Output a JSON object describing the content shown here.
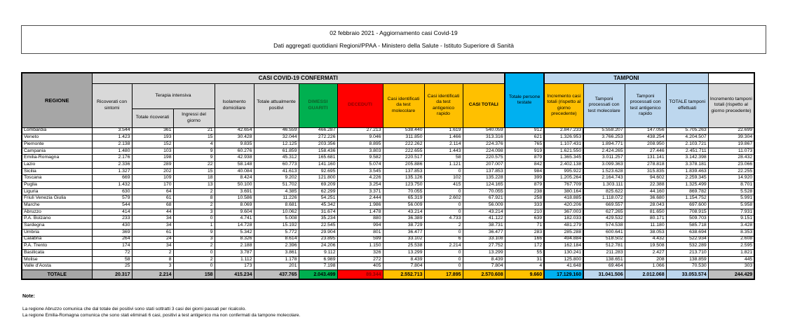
{
  "title": {
    "line1": "02 febbraio 2021 - Aggiornamento casi Covid-19",
    "line2": "Dati aggregati quotidiani Regioni/PPAA - Ministero della Salute - Istituto Superiore di Sanità"
  },
  "colors": {
    "green": "#00b050",
    "red": "#ff0000",
    "gold": "#ffc000",
    "cyan": "#00b0f0",
    "light_blue": "#bdd7ee",
    "header_gray": "#d9d9d9",
    "regione_gray": "#a6a6a6",
    "total_gray": "#bfbfbf"
  },
  "table": {
    "headers": {
      "regione": "REGIONE",
      "casi_confermati": "CASI COVID-19 CONFERMATI",
      "tamponi_banner": "TAMPONI",
      "persone_testate": "Totale persone testate",
      "ricoverati_sintomi": "Ricoverati con sintomi",
      "terapia_intensiva": "Terapia intensiva",
      "totale_ricoverati": "Totale ricoverati",
      "ingressi_giorno": "Ingressi del giorno",
      "isolamento": "Isolamento domiciliare",
      "attualmente_positivi": "Totale attualmente positivi",
      "dimessi_guariti": "DIMESSI GUARITI",
      "deceduti": "DECEDUTI",
      "casi_molecolare": "Casi identificati da test molecolare",
      "casi_antigenico": "Casi identificati da test antigenico rapido",
      "casi_totali": "CASI TOTALI",
      "incremento_casi": "Incremento casi totali (rispetto al giorno precedente)",
      "tamponi_molecolare": "Tamponi processati con test molecolare",
      "tamponi_antigenico": "Tamponi processati con test antigenico rapido",
      "totale_tamponi": "TOTALE tamponi effettuati",
      "incremento_tamponi": "Incremento tamponi totali (rispetto al giorno precedente)"
    },
    "rows": [
      {
        "name": "Lombardia",
        "values": [
          "3.544",
          "361",
          "21",
          "42.654",
          "46.559",
          "466.287",
          "27.213",
          "538.440",
          "1.619",
          "540.059",
          "912",
          "2.847.233",
          "5.558.207",
          "147.056",
          "5.705.263",
          "22.699"
        ]
      },
      {
        "name": "Veneto",
        "values": [
          "1.423",
          "193",
          "15",
          "30.428",
          "32.044",
          "272.226",
          "9.046",
          "311.850",
          "1.466",
          "313.316",
          "621",
          "1.326.953",
          "3.766.253",
          "438.254",
          "4.204.507",
          "39.304"
        ]
      },
      {
        "name": "Piemonte",
        "values": [
          "2.138",
          "152",
          "4",
          "9.835",
          "12.125",
          "203.356",
          "8.895",
          "222.262",
          "2.114",
          "224.376",
          "765",
          "1.107.431",
          "1.894.771",
          "208.950",
          "2.103.721",
          "19.867"
        ]
      },
      {
        "name": "Campania",
        "values": [
          "1.480",
          "103",
          "9",
          "60.276",
          "61.859",
          "158.436",
          "3.803",
          "222.655",
          "1.443",
          "224.098",
          "919",
          "1.621.550",
          "2.424.265",
          "27.446",
          "2.451.711",
          "11.073"
        ]
      },
      {
        "name": "Emilia-Romagna",
        "values": [
          "2.176",
          "198",
          "9",
          "42.938",
          "45.312",
          "165.681",
          "9.582",
          "220.517",
          "58",
          "220.575",
          "879",
          "1.365.345",
          "3.011.257",
          "131.141",
          "3.142.398",
          "28.432"
        ]
      },
      {
        "name": "Lazio",
        "values": [
          "2.336",
          "289",
          "22",
          "58.148",
          "60.773",
          "141.160",
          "5.074",
          "205.886",
          "1.121",
          "207.007",
          "842",
          "2.402.138",
          "3.099.363",
          "278.818",
          "3.378.181",
          "23.066"
        ]
      },
      {
        "name": "Sicilia",
        "values": [
          "1.327",
          "202",
          "15",
          "40.084",
          "41.613",
          "92.695",
          "3.545",
          "137.853",
          "0",
          "137.853",
          "984",
          "995.922",
          "1.523.628",
          "315.835",
          "1.839.463",
          "22.255"
        ]
      },
      {
        "name": "Toscana",
        "values": [
          "669",
          "109",
          "18",
          "8.424",
          "9.202",
          "121.800",
          "4.226",
          "135.126",
          "102",
          "135.228",
          "399",
          "1.205.264",
          "2.164.743",
          "94.602",
          "2.259.345",
          "14.920"
        ]
      },
      {
        "name": "Puglia",
        "values": [
          "1.432",
          "170",
          "13",
          "50.100",
          "51.702",
          "69.209",
          "3.254",
          "123.750",
          "415",
          "124.165",
          "879",
          "767.709",
          "1.303.111",
          "22.388",
          "1.325.499",
          "8.701"
        ]
      },
      {
        "name": "Liguria",
        "values": [
          "630",
          "64",
          "2",
          "3.691",
          "4.385",
          "62.299",
          "3.371",
          "70.055",
          "0",
          "70.055",
          "238",
          "380.164",
          "825.622",
          "44.160",
          "869.782",
          "5.528"
        ]
      },
      {
        "name": "Friuli Venezia Giulia",
        "values": [
          "579",
          "61",
          "8",
          "10.586",
          "11.226",
          "54.251",
          "2.444",
          "65.319",
          "2.602",
          "67.921",
          "258",
          "418.885",
          "1.118.072",
          "36.680",
          "1.154.752",
          "5.991"
        ]
      },
      {
        "name": "Marche",
        "values": [
          "544",
          "68",
          "2",
          "8.069",
          "8.681",
          "45.342",
          "1.986",
          "56.009",
          "0",
          "56.009",
          "333",
          "420.206",
          "669.557",
          "28.043",
          "697.600",
          "5.958"
        ]
      },
      {
        "name": "Abruzzo",
        "values": [
          "414",
          "44",
          "3",
          "9.604",
          "10.062",
          "31.674",
          "1.478",
          "43.214",
          "0",
          "43.214",
          "210",
          "367.003",
          "627.265",
          "81.650",
          "708.915",
          "7.931"
        ]
      },
      {
        "name": "P.A. Bolzano",
        "values": [
          "233",
          "34",
          "0",
          "4.741",
          "5.008",
          "35.234",
          "880",
          "36.389",
          "4.733",
          "41.122",
          "639",
          "182.033",
          "429.532",
          "80.171",
          "509.703",
          "9.151"
        ]
      },
      {
        "name": "Sardegna",
        "values": [
          "430",
          "34",
          "1",
          "14.728",
          "15.192",
          "22.545",
          "994",
          "38.729",
          "2",
          "38.731",
          "71",
          "481.279",
          "574.538",
          "11.180",
          "585.718",
          "3.428"
        ]
      },
      {
        "name": "Umbria",
        "values": [
          "369",
          "61",
          "9",
          "5.342",
          "5.772",
          "29.904",
          "801",
          "36.477",
          "0",
          "36.477",
          "283",
          "285.288",
          "600.641",
          "38.053",
          "638.694",
          "8.353"
        ]
      },
      {
        "name": "Calabria",
        "values": [
          "264",
          "24",
          "3",
          "8.326",
          "8.614",
          "23.895",
          "599",
          "33.102",
          "6",
          "33.108",
          "166",
          "494.884",
          "518.502",
          "4.432",
          "522.934",
          "2.608"
        ]
      },
      {
        "name": "P.A. Trento",
        "values": [
          "174",
          "34",
          "2",
          "2.188",
          "2.396",
          "24.206",
          "1.150",
          "25.538",
          "2.214",
          "27.752",
          "172",
          "162.184",
          "512.781",
          "19.508",
          "532.289",
          "2.595"
        ]
      },
      {
        "name": "Basilicata",
        "values": [
          "72",
          "2",
          "0",
          "3.787",
          "3.861",
          "9.112",
          "326",
          "13.299",
          "0",
          "13.299",
          "55",
          "130.241",
          "211.283",
          "2.427",
          "213.710",
          "1.821"
        ]
      },
      {
        "name": "Molise",
        "values": [
          "58",
          "8",
          "2",
          "1.112",
          "1.178",
          "6.989",
          "272",
          "8.439",
          "0",
          "8.439",
          "31",
          "125.800",
          "138.651",
          "208",
          "138.859",
          "445"
        ]
      },
      {
        "name": "Valle d'Aosta",
        "values": [
          "25",
          "3",
          "0",
          "173",
          "201",
          "7.198",
          "405",
          "7.804",
          "0",
          "7.804",
          "4",
          "41.648",
          "69.464",
          "1.066",
          "70.530",
          "303"
        ]
      }
    ],
    "total_row": {
      "label": "TOTALE",
      "values": [
        "20.317",
        "2.214",
        "158",
        "415.234",
        "437.765",
        "2.043.499",
        "89.344",
        "2.552.713",
        "17.895",
        "2.570.608",
        "9.660",
        "17.129.160",
        "31.041.506",
        "2.012.068",
        "33.053.574",
        "244.429"
      ]
    }
  },
  "notes": {
    "heading": "Note:",
    "lines": [
      "La regione Abruzzo comunica che dal totale dei positivi sono stati sottratti 3 casi dei giorni passati per ricalcolo.",
      "La regione Emilia-Romagna comunica che sono stati eliminati 6 casi, positivi a test antigenico ma non confermati da tampone molecolare."
    ]
  }
}
